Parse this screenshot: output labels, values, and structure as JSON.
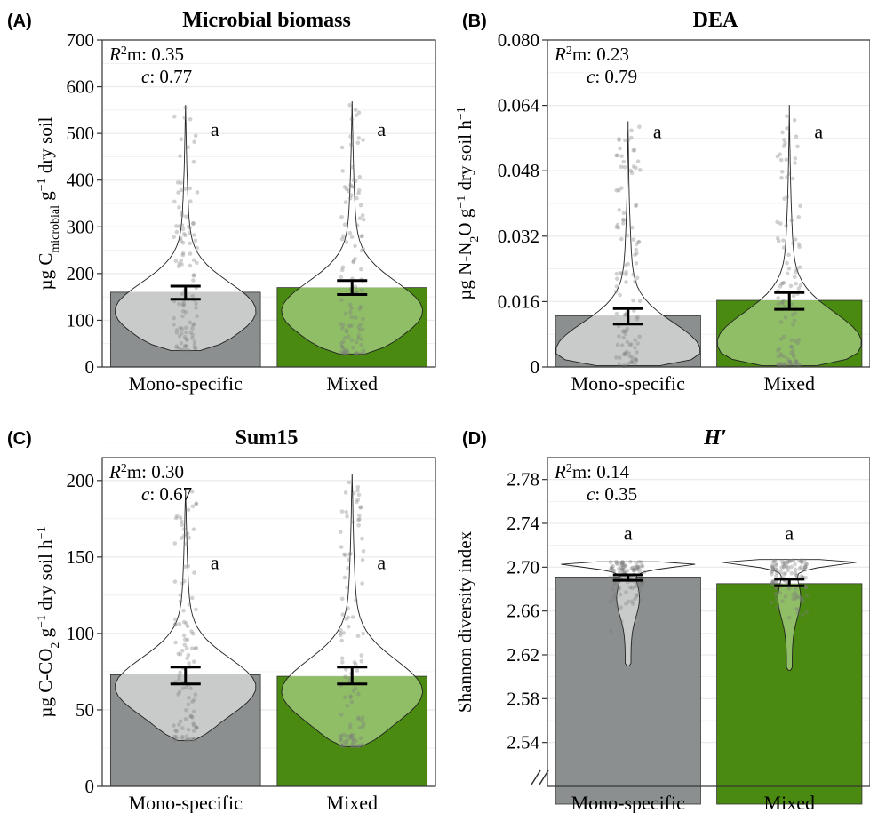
{
  "colors": {
    "mono_bar": "#8c8f8f",
    "mixed_bar": "#4a8a10",
    "mono_violin": "#c9cbcb",
    "mixed_violin": "#8fbe67",
    "grid": "#ebebeb",
    "point": "#7a7a7a"
  },
  "chart_data": [
    {
      "type": "bar",
      "panel_label": "(A)",
      "title": "Microbial biomass",
      "title_italic": false,
      "ylabel_parts": [
        "µg C",
        "microbial",
        " g",
        "−1",
        " dry soil"
      ],
      "ylim": [
        0,
        700
      ],
      "yticks": [
        0,
        100,
        200,
        300,
        400,
        500,
        600,
        700
      ],
      "ytick_labels": [
        "0",
        "100",
        "200",
        "300",
        "400",
        "500",
        "600",
        "700"
      ],
      "axis_break": false,
      "categories": [
        "Mono-specific",
        "Mixed"
      ],
      "values": [
        160,
        170
      ],
      "error_low": [
        145,
        155
      ],
      "error_high": [
        173,
        185
      ],
      "violin": [
        {
          "min": 35,
          "max": 560,
          "mode": 120,
          "width": 0.9
        },
        {
          "min": 28,
          "max": 568,
          "mode": 120,
          "width": 0.9
        }
      ],
      "r2m": "0.35",
      "c": "0.77",
      "letters": [
        "a",
        "a"
      ],
      "letter_y": 495
    },
    {
      "type": "bar",
      "panel_label": "(B)",
      "title": "DEA",
      "title_italic": false,
      "ylabel_parts": [
        "µg N-N",
        "2",
        "O g",
        "−1",
        " dry soil h",
        "−1"
      ],
      "ylim": [
        0,
        0.08
      ],
      "yticks": [
        0,
        0.016,
        0.032,
        0.048,
        0.064,
        0.08
      ],
      "ytick_labels": [
        "0",
        "0.016",
        "0.032",
        "0.048",
        "0.064",
        "0.080"
      ],
      "axis_break": false,
      "categories": [
        "Mono-specific",
        "Mixed"
      ],
      "values": [
        0.0125,
        0.0163
      ],
      "error_low": [
        0.0105,
        0.0141
      ],
      "error_high": [
        0.0143,
        0.0182
      ],
      "violin": [
        {
          "min": 0.0003,
          "max": 0.06,
          "mode": 0.004,
          "width": 0.95
        },
        {
          "min": 0.0003,
          "max": 0.064,
          "mode": 0.006,
          "width": 0.95
        }
      ],
      "r2m": "0.23",
      "c": "0.79",
      "letters": [
        "a",
        "a"
      ],
      "letter_y": 0.056
    },
    {
      "type": "bar",
      "panel_label": "(C)",
      "title": "Sum15",
      "title_italic": false,
      "ylabel_parts": [
        "µg C-CO",
        "2",
        " g",
        "−1",
        " dry soil h",
        "−1"
      ],
      "ylim": [
        0,
        215
      ],
      "yticks": [
        0,
        50,
        100,
        150,
        200
      ],
      "ytick_labels": [
        "0",
        "50",
        "100",
        "150",
        "200"
      ],
      "axis_break": false,
      "categories": [
        "Mono-specific",
        "Mixed"
      ],
      "values": [
        73,
        72
      ],
      "error_low": [
        67,
        67
      ],
      "error_high": [
        78,
        78
      ],
      "violin": [
        {
          "min": 30,
          "max": 194,
          "mode": 65,
          "width": 0.9
        },
        {
          "min": 26,
          "max": 204,
          "mode": 62,
          "width": 0.9
        }
      ],
      "r2m": "0.30",
      "c": "0.67",
      "letters": [
        "a",
        "a"
      ],
      "letter_y": 142
    },
    {
      "type": "bar",
      "panel_label": "(D)",
      "title": "H′",
      "title_italic": true,
      "ylabel_parts": [
        "Shannon diversity index"
      ],
      "ylim": [
        2.5,
        2.8
      ],
      "yticks": [
        2.54,
        2.58,
        2.62,
        2.66,
        2.7,
        2.74,
        2.78
      ],
      "ytick_labels": [
        "2.54",
        "2.58",
        "2.62",
        "2.66",
        "2.70",
        "2.74",
        "2.78"
      ],
      "axis_break": true,
      "categories": [
        "Mono-specific",
        "Mixed"
      ],
      "values": [
        2.691,
        2.685
      ],
      "error_low": [
        2.688,
        2.683
      ],
      "error_high": [
        2.693,
        2.689
      ],
      "violin": [
        {
          "min": 2.61,
          "max": 2.705,
          "mode": 2.7,
          "width": 0.98
        },
        {
          "min": 2.606,
          "max": 2.707,
          "mode": 2.7,
          "width": 0.98
        }
      ],
      "r2m": "0.14",
      "c": "0.35",
      "letters": [
        "a",
        "a"
      ],
      "letter_y": 2.725
    }
  ]
}
